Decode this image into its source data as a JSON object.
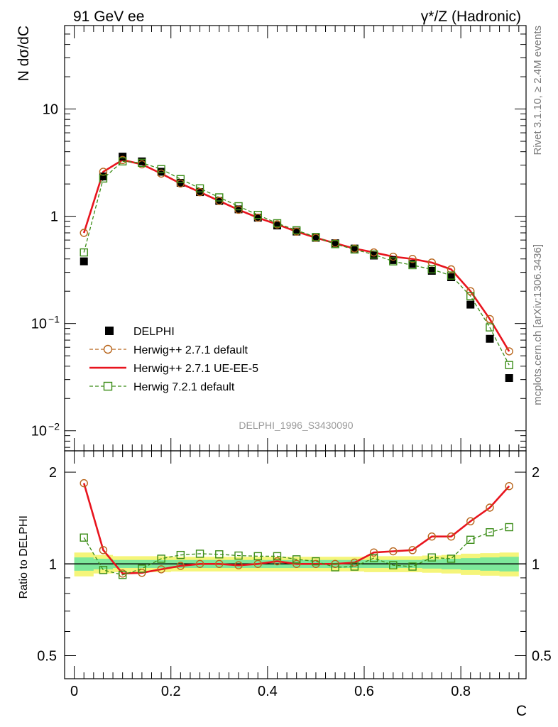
{
  "header": {
    "left": "91 GeV ee",
    "right": "γ*/Z (Hadronic)"
  },
  "side_labels": {
    "rivet": "Rivet 3.1.10, ≥ 2.4M events",
    "mcplots": "mcplots.cern.ch [arXiv:1306.3436]"
  },
  "watermark": "DELPHI_1996_S3430090",
  "chart_data": [
    {
      "type": "scatter",
      "panel": "main",
      "ylabel": "N dσ/dC",
      "xlabel": "C",
      "yscale": "log",
      "xlim": [
        -0.02,
        0.935
      ],
      "ylim": [
        0.0065,
        60
      ],
      "y_ticks": [
        {
          "value": 10,
          "label": "10"
        },
        {
          "value": 1,
          "label": "1"
        },
        {
          "value": 0.1,
          "label": "10",
          "sup": "−1"
        },
        {
          "value": 0.01,
          "label": "10",
          "sup": "−2"
        }
      ],
      "x": [
        0.02,
        0.06,
        0.1,
        0.14,
        0.18,
        0.22,
        0.26,
        0.3,
        0.34,
        0.38,
        0.42,
        0.46,
        0.5,
        0.54,
        0.58,
        0.62,
        0.66,
        0.7,
        0.74,
        0.78,
        0.82,
        0.86,
        0.9
      ],
      "series": [
        {
          "name": "DELPHI",
          "style": "data",
          "color": "#000000",
          "values": [
            0.38,
            2.35,
            3.6,
            3.25,
            2.6,
            2.05,
            1.68,
            1.39,
            1.16,
            0.97,
            0.82,
            0.72,
            0.63,
            0.56,
            0.5,
            0.43,
            0.39,
            0.36,
            0.31,
            0.27,
            0.15,
            0.072,
            0.031
          ]
        },
        {
          "name": "Herwig++ 2.7.1 default",
          "style": "circle-dashed",
          "color": "#b8651b",
          "values": [
            0.7,
            2.6,
            3.35,
            3.05,
            2.5,
            2.02,
            1.68,
            1.39,
            1.15,
            0.97,
            0.84,
            0.72,
            0.63,
            0.56,
            0.5,
            0.46,
            0.42,
            0.4,
            0.37,
            0.32,
            0.2,
            0.11,
            0.055
          ]
        },
        {
          "name": "Herwig++ 2.7.1 UE-EE-5",
          "style": "solid",
          "color": "#e8141e",
          "values": [
            0.7,
            2.6,
            3.35,
            3.05,
            2.5,
            2.02,
            1.68,
            1.39,
            1.15,
            0.97,
            0.84,
            0.72,
            0.63,
            0.56,
            0.5,
            0.46,
            0.42,
            0.4,
            0.37,
            0.32,
            0.2,
            0.11,
            0.055
          ]
        },
        {
          "name": "Herwig 7.2.1 default",
          "style": "square-dashed",
          "color": "#3b8c17",
          "values": [
            0.46,
            2.25,
            3.25,
            3.15,
            2.75,
            2.22,
            1.82,
            1.5,
            1.24,
            1.03,
            0.86,
            0.74,
            0.64,
            0.55,
            0.49,
            0.44,
            0.38,
            0.35,
            0.32,
            0.28,
            0.18,
            0.092,
            0.041
          ]
        }
      ],
      "legend": "middle-left"
    },
    {
      "type": "scatter",
      "panel": "ratio",
      "ylabel": "Ratio to DELPHI",
      "xlabel": "C",
      "yscale": "log",
      "xlim": [
        -0.02,
        0.935
      ],
      "ylim": [
        0.42,
        2.35
      ],
      "y_ticks": [
        {
          "value": 2,
          "label": "2"
        },
        {
          "value": 1,
          "label": "1"
        },
        {
          "value": 0.5,
          "label": "0.5"
        }
      ],
      "x_ticks": [
        {
          "value": 0,
          "label": "0"
        },
        {
          "value": 0.2,
          "label": "0.2"
        },
        {
          "value": 0.4,
          "label": "0.4"
        },
        {
          "value": 0.6,
          "label": "0.6"
        },
        {
          "value": 0.8,
          "label": "0.8"
        }
      ],
      "x": [
        0.02,
        0.06,
        0.1,
        0.14,
        0.18,
        0.22,
        0.26,
        0.3,
        0.34,
        0.38,
        0.42,
        0.46,
        0.5,
        0.54,
        0.58,
        0.62,
        0.66,
        0.7,
        0.74,
        0.78,
        0.82,
        0.86,
        0.9
      ],
      "band_inner": [
        0.05,
        0.04,
        0.03,
        0.03,
        0.03,
        0.03,
        0.03,
        0.03,
        0.03,
        0.03,
        0.03,
        0.03,
        0.03,
        0.03,
        0.03,
        0.03,
        0.03,
        0.03,
        0.035,
        0.04,
        0.045,
        0.05,
        0.055
      ],
      "band_outer": [
        0.09,
        0.07,
        0.06,
        0.06,
        0.06,
        0.055,
        0.055,
        0.055,
        0.055,
        0.055,
        0.055,
        0.055,
        0.055,
        0.055,
        0.055,
        0.06,
        0.06,
        0.06,
        0.065,
        0.07,
        0.08,
        0.085,
        0.09
      ],
      "band_colors": {
        "outer": "#f5f57a",
        "inner": "#7de89a"
      },
      "series": [
        {
          "name": "Herwig++ 2.7.1 default",
          "style": "circle-dashed",
          "color": "#b8651b",
          "values": [
            1.84,
            1.11,
            0.93,
            0.935,
            0.96,
            0.985,
            1.0,
            1.0,
            0.99,
            1.0,
            1.02,
            1.0,
            1.0,
            1.0,
            1.01,
            1.09,
            1.1,
            1.11,
            1.23,
            1.23,
            1.38,
            1.53,
            1.8
          ]
        },
        {
          "name": "Herwig++ 2.7.1 UE-EE-5",
          "style": "solid",
          "color": "#e8141e",
          "values": [
            1.84,
            1.11,
            0.93,
            0.935,
            0.96,
            0.985,
            1.0,
            1.0,
            0.99,
            1.0,
            1.02,
            1.0,
            1.0,
            1.0,
            1.01,
            1.09,
            1.1,
            1.11,
            1.23,
            1.23,
            1.38,
            1.53,
            1.8
          ]
        },
        {
          "name": "Herwig 7.2.1 default",
          "style": "square-dashed",
          "color": "#3b8c17",
          "values": [
            1.22,
            0.955,
            0.92,
            0.965,
            1.04,
            1.07,
            1.08,
            1.075,
            1.065,
            1.06,
            1.06,
            1.035,
            1.02,
            0.975,
            0.98,
            1.045,
            0.99,
            0.98,
            1.05,
            1.04,
            1.2,
            1.27,
            1.32
          ]
        }
      ]
    }
  ]
}
